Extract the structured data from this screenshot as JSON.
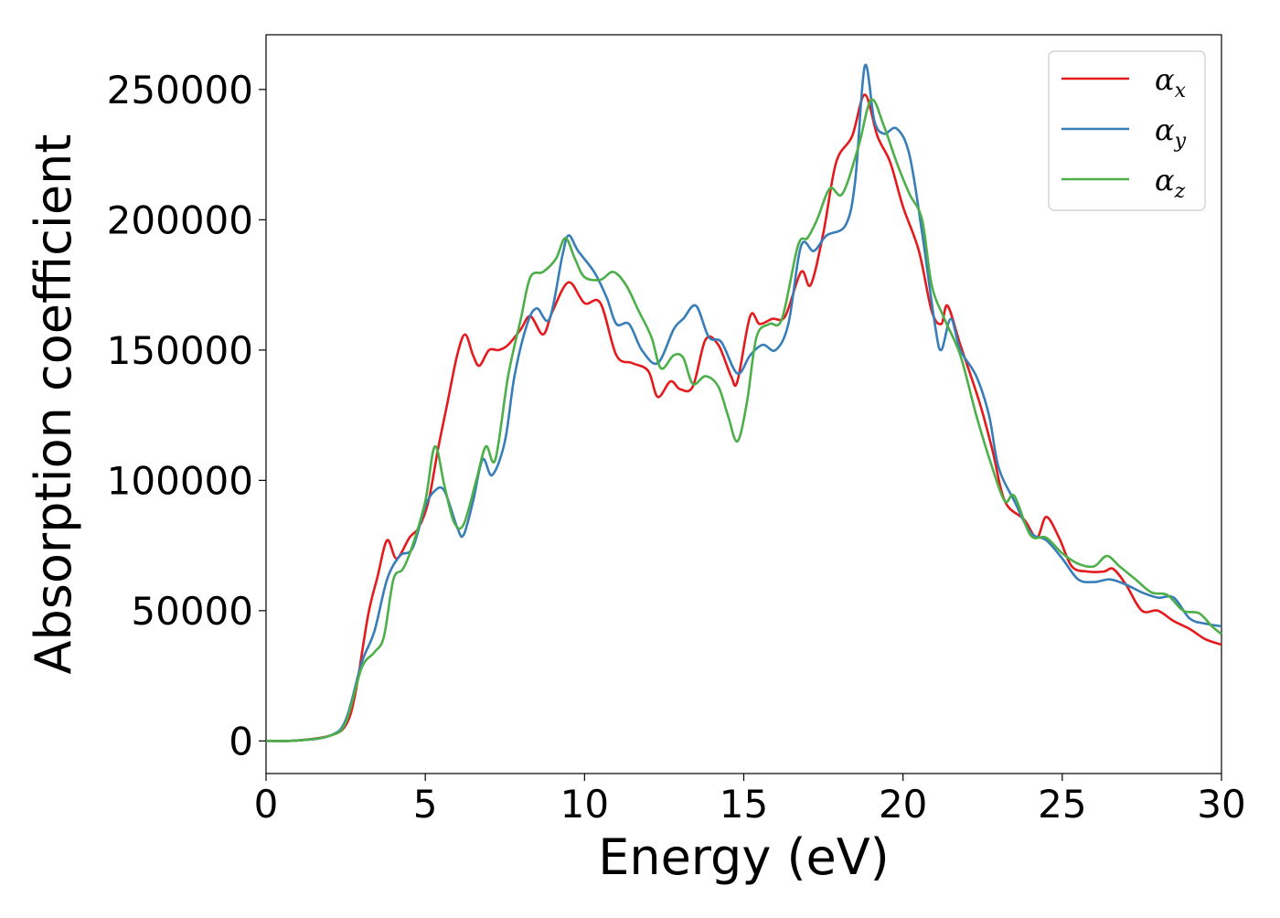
{
  "chart_data": {
    "type": "line",
    "title": "",
    "xlabel": "Energy (eV)",
    "ylabel": "Absorption coefficient",
    "xlim": [
      0,
      30
    ],
    "ylim": [
      -12500,
      271000
    ],
    "xticks": [
      0,
      5,
      10,
      15,
      20,
      25,
      30
    ],
    "xtick_labels": [
      "0",
      "5",
      "10",
      "15",
      "20",
      "25",
      "30"
    ],
    "yticks": [
      0,
      50000,
      100000,
      150000,
      200000,
      250000
    ],
    "ytick_labels": [
      "0",
      "50000",
      "100000",
      "150000",
      "200000",
      "250000"
    ],
    "grid": false,
    "legend_position": "top-right",
    "series": [
      {
        "name": "αx",
        "legend_base": "α",
        "legend_sub": "x",
        "color": "#e41a1c",
        "points": [
          [
            0,
            0
          ],
          [
            1,
            200
          ],
          [
            2,
            2000
          ],
          [
            2.5,
            6000
          ],
          [
            2.8,
            18000
          ],
          [
            3.2,
            48000
          ],
          [
            3.5,
            63000
          ],
          [
            3.8,
            77000
          ],
          [
            4.1,
            70000
          ],
          [
            4.5,
            78000
          ],
          [
            4.8,
            82000
          ],
          [
            5.1,
            92000
          ],
          [
            5.4,
            112000
          ],
          [
            5.7,
            130000
          ],
          [
            6.0,
            148000
          ],
          [
            6.25,
            156000
          ],
          [
            6.5,
            148000
          ],
          [
            6.7,
            144000
          ],
          [
            7.0,
            150000
          ],
          [
            7.3,
            150000
          ],
          [
            7.6,
            152000
          ],
          [
            8.0,
            158000
          ],
          [
            8.3,
            163000
          ],
          [
            8.7,
            156000
          ],
          [
            9.0,
            165000
          ],
          [
            9.5,
            176000
          ],
          [
            10.0,
            168000
          ],
          [
            10.5,
            168000
          ],
          [
            11.0,
            148000
          ],
          [
            11.5,
            145000
          ],
          [
            12.0,
            142000
          ],
          [
            12.3,
            132000
          ],
          [
            12.7,
            138000
          ],
          [
            13.0,
            135000
          ],
          [
            13.4,
            136000
          ],
          [
            13.8,
            154000
          ],
          [
            14.2,
            152000
          ],
          [
            14.6,
            140000
          ],
          [
            14.8,
            138000
          ],
          [
            15.2,
            163000
          ],
          [
            15.5,
            160000
          ],
          [
            15.9,
            162000
          ],
          [
            16.3,
            163000
          ],
          [
            16.8,
            180000
          ],
          [
            17.1,
            175000
          ],
          [
            17.5,
            195000
          ],
          [
            17.9,
            222000
          ],
          [
            18.4,
            232000
          ],
          [
            18.8,
            248000
          ],
          [
            19.2,
            232000
          ],
          [
            19.6,
            222000
          ],
          [
            20.0,
            205000
          ],
          [
            20.5,
            188000
          ],
          [
            20.9,
            165000
          ],
          [
            21.2,
            160000
          ],
          [
            21.4,
            167000
          ],
          [
            21.8,
            152000
          ],
          [
            22.4,
            130000
          ],
          [
            22.8,
            112000
          ],
          [
            23.2,
            92000
          ],
          [
            23.8,
            85000
          ],
          [
            24.2,
            78000
          ],
          [
            24.5,
            86000
          ],
          [
            24.9,
            78000
          ],
          [
            25.3,
            67000
          ],
          [
            25.8,
            65000
          ],
          [
            26.3,
            65000
          ],
          [
            26.6,
            66000
          ],
          [
            27.0,
            60000
          ],
          [
            27.5,
            50000
          ],
          [
            28.0,
            50000
          ],
          [
            28.5,
            46000
          ],
          [
            29.0,
            43000
          ],
          [
            29.5,
            39000
          ],
          [
            30.0,
            37000
          ]
        ]
      },
      {
        "name": "αy",
        "legend_base": "α",
        "legend_sub": "y",
        "color": "#377eb8",
        "points": [
          [
            0,
            0
          ],
          [
            1,
            200
          ],
          [
            2,
            2000
          ],
          [
            2.5,
            8000
          ],
          [
            3.0,
            30000
          ],
          [
            3.4,
            42000
          ],
          [
            3.8,
            62000
          ],
          [
            4.2,
            71000
          ],
          [
            4.6,
            74000
          ],
          [
            5.0,
            90000
          ],
          [
            5.3,
            96000
          ],
          [
            5.6,
            96000
          ],
          [
            6.0,
            82000
          ],
          [
            6.2,
            79000
          ],
          [
            6.5,
            92000
          ],
          [
            6.8,
            108000
          ],
          [
            7.1,
            102000
          ],
          [
            7.5,
            115000
          ],
          [
            7.8,
            140000
          ],
          [
            8.2,
            160000
          ],
          [
            8.5,
            166000
          ],
          [
            8.9,
            162000
          ],
          [
            9.3,
            186000
          ],
          [
            9.5,
            194000
          ],
          [
            9.8,
            188000
          ],
          [
            10.3,
            180000
          ],
          [
            10.7,
            170000
          ],
          [
            11.0,
            160000
          ],
          [
            11.4,
            160000
          ],
          [
            11.8,
            150000
          ],
          [
            12.3,
            145000
          ],
          [
            12.8,
            158000
          ],
          [
            13.1,
            162000
          ],
          [
            13.5,
            167000
          ],
          [
            13.9,
            155000
          ],
          [
            14.3,
            153000
          ],
          [
            14.8,
            141000
          ],
          [
            15.2,
            148000
          ],
          [
            15.6,
            152000
          ],
          [
            16.0,
            150000
          ],
          [
            16.4,
            160000
          ],
          [
            16.8,
            190000
          ],
          [
            17.2,
            188000
          ],
          [
            17.6,
            194000
          ],
          [
            18.2,
            198000
          ],
          [
            18.5,
            215000
          ],
          [
            18.8,
            259000
          ],
          [
            19.1,
            238000
          ],
          [
            19.4,
            233000
          ],
          [
            19.8,
            235000
          ],
          [
            20.2,
            225000
          ],
          [
            20.6,
            195000
          ],
          [
            21.0,
            160000
          ],
          [
            21.2,
            150000
          ],
          [
            21.5,
            162000
          ],
          [
            21.8,
            150000
          ],
          [
            22.3,
            140000
          ],
          [
            22.7,
            125000
          ],
          [
            23.0,
            105000
          ],
          [
            23.5,
            92000
          ],
          [
            24.0,
            80000
          ],
          [
            24.5,
            77000
          ],
          [
            25.0,
            70000
          ],
          [
            25.5,
            62000
          ],
          [
            26.0,
            61000
          ],
          [
            26.5,
            62000
          ],
          [
            27.0,
            60000
          ],
          [
            27.5,
            57000
          ],
          [
            28.0,
            55000
          ],
          [
            28.5,
            55000
          ],
          [
            29.0,
            47000
          ],
          [
            29.5,
            45000
          ],
          [
            30.0,
            44000
          ]
        ]
      },
      {
        "name": "αz",
        "legend_base": "α",
        "legend_sub": "z",
        "color": "#4daf4a",
        "points": [
          [
            0,
            0
          ],
          [
            1,
            200
          ],
          [
            2,
            2000
          ],
          [
            2.5,
            7000
          ],
          [
            3.0,
            28000
          ],
          [
            3.4,
            34000
          ],
          [
            3.7,
            40000
          ],
          [
            4.0,
            62000
          ],
          [
            4.3,
            66000
          ],
          [
            4.6,
            75000
          ],
          [
            5.0,
            92000
          ],
          [
            5.3,
            113000
          ],
          [
            5.6,
            98000
          ],
          [
            5.9,
            84000
          ],
          [
            6.2,
            83000
          ],
          [
            6.6,
            100000
          ],
          [
            6.9,
            113000
          ],
          [
            7.2,
            108000
          ],
          [
            7.6,
            140000
          ],
          [
            8.0,
            162000
          ],
          [
            8.3,
            178000
          ],
          [
            8.7,
            180000
          ],
          [
            9.1,
            185000
          ],
          [
            9.4,
            193000
          ],
          [
            9.7,
            185000
          ],
          [
            10.0,
            178000
          ],
          [
            10.5,
            177000
          ],
          [
            10.9,
            180000
          ],
          [
            11.3,
            175000
          ],
          [
            11.7,
            165000
          ],
          [
            12.1,
            155000
          ],
          [
            12.4,
            143000
          ],
          [
            12.8,
            148000
          ],
          [
            13.1,
            147000
          ],
          [
            13.4,
            137000
          ],
          [
            13.8,
            140000
          ],
          [
            14.2,
            136000
          ],
          [
            14.5,
            125000
          ],
          [
            14.8,
            115000
          ],
          [
            15.1,
            130000
          ],
          [
            15.4,
            155000
          ],
          [
            15.8,
            160000
          ],
          [
            16.2,
            162000
          ],
          [
            16.7,
            190000
          ],
          [
            17.0,
            193000
          ],
          [
            17.3,
            200000
          ],
          [
            17.7,
            212000
          ],
          [
            18.1,
            210000
          ],
          [
            18.6,
            228000
          ],
          [
            19.0,
            246000
          ],
          [
            19.4,
            236000
          ],
          [
            19.8,
            222000
          ],
          [
            20.2,
            210000
          ],
          [
            20.6,
            200000
          ],
          [
            20.9,
            175000
          ],
          [
            21.3,
            162000
          ],
          [
            21.8,
            148000
          ],
          [
            22.3,
            125000
          ],
          [
            22.8,
            105000
          ],
          [
            23.2,
            92000
          ],
          [
            23.5,
            94000
          ],
          [
            24.0,
            79000
          ],
          [
            24.5,
            78000
          ],
          [
            25.0,
            72000
          ],
          [
            25.5,
            68000
          ],
          [
            26.0,
            67000
          ],
          [
            26.4,
            71000
          ],
          [
            26.8,
            67000
          ],
          [
            27.3,
            62000
          ],
          [
            27.8,
            57000
          ],
          [
            28.3,
            56000
          ],
          [
            28.8,
            50000
          ],
          [
            29.3,
            49000
          ],
          [
            29.7,
            44000
          ],
          [
            30.0,
            41000
          ]
        ]
      }
    ]
  }
}
